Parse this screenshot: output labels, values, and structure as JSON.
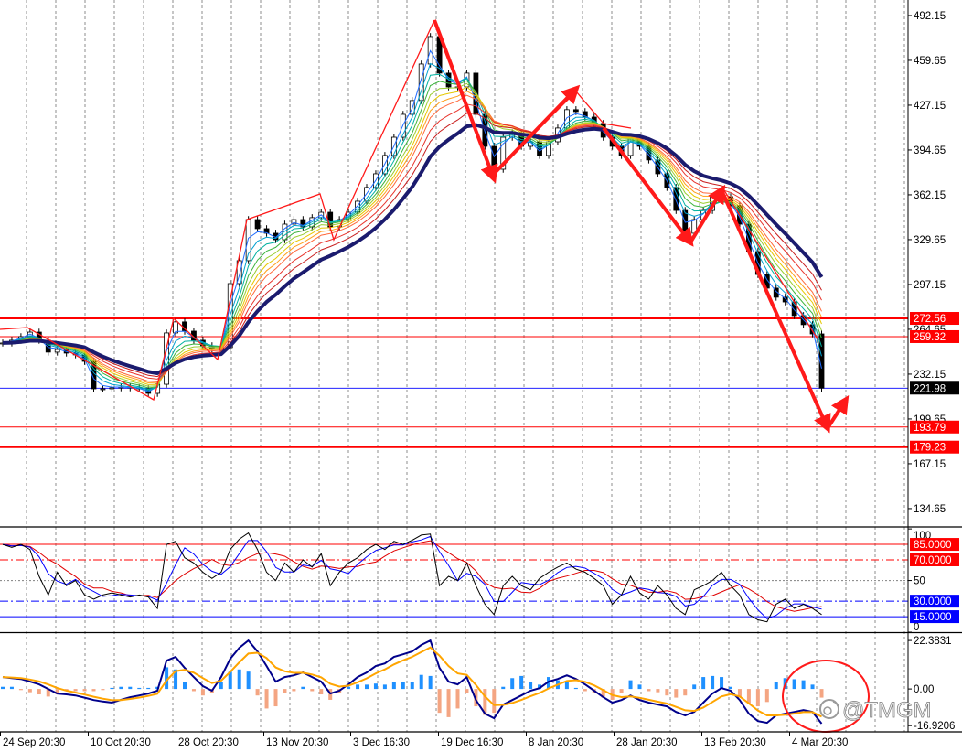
{
  "chart_data": [
    {
      "type": "line",
      "x_ticks": [
        "24 Sep 20:30",
        "10 Oct 20:30",
        "28 Oct 20:30",
        "13 Nov 20:30",
        "3 Dec 16:30",
        "19 Dec 16:30",
        "8 Jan 20:30",
        "28 Jan 20:30",
        "13 Feb 20:30",
        "4 Mar 20:30"
      ],
      "y_ticks": [
        "492.15",
        "459.65",
        "427.15",
        "394.65",
        "362.15",
        "329.65",
        "297.15",
        "264.65",
        "232.15",
        "199.65",
        "167.15",
        "134.65"
      ],
      "ylim": [
        122.0,
        503.4
      ],
      "levels": [
        {
          "label": "272.56",
          "color": "#ff0000",
          "line_color": "#ff0000"
        },
        {
          "label": "259.32",
          "color": "#ff0000",
          "line_color": "#ff0000"
        },
        {
          "label": "221.98",
          "color": "#000000",
          "line_color": "#0000ff"
        },
        {
          "label": "193.79",
          "color": "#ff0000",
          "line_color": "#ff0000"
        },
        {
          "label": "179.23",
          "color": "#ff0000",
          "line_color": "#ff0000"
        }
      ],
      "close": [
        254.7,
        256.7,
        259.3,
        262.6,
        256.7,
        248.1,
        250.0,
        247.4,
        246.1,
        241.4,
        221.5,
        221.5,
        222.2,
        222.8,
        222.2,
        221.5,
        218.2,
        224.8,
        262.0,
        270.0,
        263.3,
        256.7,
        252.7,
        250.0,
        251.4,
        297.8,
        314.4,
        344.2,
        337.6,
        334.3,
        329.6,
        340.9,
        344.2,
        338.9,
        345.6,
        349.5,
        338.9,
        344.2,
        349.5,
        357.5,
        367.5,
        377.4,
        390.7,
        403.9,
        420.5,
        430.5,
        457.0,
        476.9,
        450.4,
        440.4,
        440.4,
        450.4,
        420.5,
        397.3,
        380.7,
        403.9,
        407.2,
        397.3,
        400.6,
        390.7,
        400.6,
        410.6,
        423.9,
        422.5,
        418.5,
        413.9,
        403.9,
        397.3,
        390.7,
        403.9,
        397.3,
        387.4,
        377.4,
        367.5,
        350.8,
        334.3,
        344.2,
        350.8,
        360.8,
        360.8,
        354.2,
        340.9,
        321.0,
        304.4,
        294.5,
        287.9,
        284.5,
        274.6,
        268.0,
        261.3,
        222.0
      ]
    },
    {
      "type": "line",
      "y_ticks": [
        "100",
        "50",
        "0"
      ],
      "ylim": [
        0,
        101
      ],
      "levels": [
        {
          "label": "85.0000",
          "color": "#ff0000"
        },
        {
          "label": "70.0000",
          "color": "#ff0000"
        },
        {
          "label": "30.0000",
          "color": "#0000ff"
        },
        {
          "label": "15.0000",
          "color": "#0000ff"
        }
      ],
      "values": [
        85,
        82,
        85,
        80,
        54,
        36,
        58,
        45,
        50,
        36,
        32,
        36,
        38,
        36,
        34,
        36,
        34,
        23,
        85,
        88,
        72,
        67,
        58,
        52,
        58,
        80,
        90,
        96,
        80,
        58,
        50,
        67,
        58,
        70,
        63,
        76,
        45,
        58,
        67,
        72,
        80,
        85,
        80,
        88,
        85,
        89,
        94,
        95,
        45,
        54,
        50,
        67,
        45,
        27,
        17,
        45,
        54,
        45,
        41,
        52,
        58,
        63,
        67,
        61,
        58,
        52,
        45,
        27,
        36,
        54,
        38,
        32,
        45,
        36,
        23,
        17,
        41,
        45,
        50,
        58,
        45,
        36,
        17,
        12,
        10,
        27,
        32,
        23,
        27,
        23,
        17
      ]
    },
    {
      "type": "bar",
      "y_ticks": [
        "22.3831",
        "0.00",
        "-16.9206"
      ],
      "ylim": [
        -19.8,
        25.8
      ],
      "line": [
        5.5,
        5.0,
        4.6,
        3.4,
        2.1,
        0.0,
        -2.1,
        -2.5,
        -3.0,
        -4.0,
        -5.1,
        -5.8,
        -6.3,
        -5.0,
        -3.8,
        -3.0,
        -2.1,
        -0.8,
        13.1,
        14.8,
        9.7,
        5.5,
        1.3,
        -0.8,
        5.5,
        13.9,
        19.0,
        22.4,
        17.3,
        10.6,
        3.4,
        5.5,
        6.3,
        7.6,
        5.5,
        3.4,
        -2.1,
        -0.8,
        2.1,
        5.5,
        7.6,
        10.6,
        11.8,
        14.8,
        16.0,
        17.3,
        20.3,
        22.4,
        9.7,
        3.4,
        2.1,
        5.5,
        -5.1,
        -11.4,
        -13.5,
        -7.2,
        -5.1,
        -3.0,
        -0.8,
        0.4,
        3.4,
        4.6,
        6.3,
        4.6,
        2.1,
        -0.8,
        -3.8,
        -6.3,
        -5.1,
        -3.0,
        -5.1,
        -6.3,
        -7.2,
        -8.0,
        -10.6,
        -12.2,
        -10.6,
        -6.3,
        -2.1,
        0.4,
        -0.8,
        -5.1,
        -11.4,
        -14.8,
        -15.6,
        -12.2,
        -11.4,
        -10.6,
        -9.7,
        -10.6,
        -16.0
      ],
      "histogram": [
        1.0,
        1.0,
        -0.5,
        -1.5,
        -2.5,
        -3.5,
        -2.5,
        -1.0,
        -1.0,
        -1.0,
        -1.0,
        -0.5,
        0.5,
        1.0,
        1.0,
        0.5,
        0.5,
        1.0,
        10.0,
        9.0,
        3.0,
        -1.0,
        -3.0,
        -2.0,
        3.0,
        8.0,
        9.0,
        8.0,
        -3.0,
        -9.0,
        -8.0,
        -2.0,
        -1.0,
        1.0,
        -1.0,
        -2.5,
        -5.0,
        -2.0,
        1.0,
        2.0,
        2.0,
        2.5,
        2.0,
        3.0,
        3.0,
        3.0,
        6.5,
        6.0,
        -11.0,
        -13.0,
        -9.0,
        -2.0,
        -8.0,
        -12.0,
        -11.0,
        1.0,
        5.0,
        6.0,
        3.0,
        2.0,
        5.5,
        4.0,
        3.0,
        0.5,
        -1.0,
        -2.0,
        -4.0,
        -5.0,
        -2.0,
        4.0,
        2.0,
        -1.0,
        -1.5,
        -3.0,
        -4.0,
        -3.0,
        2.0,
        5.5,
        6.0,
        5.5,
        1.0,
        -4.0,
        -7.0,
        -8.0,
        -6.0,
        3.0,
        5.0,
        4.5,
        4.0,
        2.0,
        -4.0
      ]
    }
  ],
  "watermark": {
    "text": "@TMGM",
    "icon": "watermark-logo-icon"
  },
  "colors": {
    "background": "#ffffff",
    "candle_up": "#ffffff",
    "candle_down": "#000000",
    "ribbon": [
      "#1e6bff",
      "#00a0d0",
      "#00b0a0",
      "#3cb43c",
      "#9acd32",
      "#e6c800",
      "#ff9f1a",
      "#ff6a3c",
      "#e8342c",
      "#c81e1e"
    ],
    "slow_ma": "#1b1b6e",
    "annotation": "#ff1a1a",
    "osc_main": "#000000",
    "osc_fast": "#0000ff",
    "osc_slow": "#e00000",
    "osc_mid": "#808080",
    "macd_main": "#00008b",
    "macd_signal": "#ffa500",
    "hist_up": "#1e90ff",
    "hist_down": "#f4a582",
    "grid": "#444444"
  }
}
